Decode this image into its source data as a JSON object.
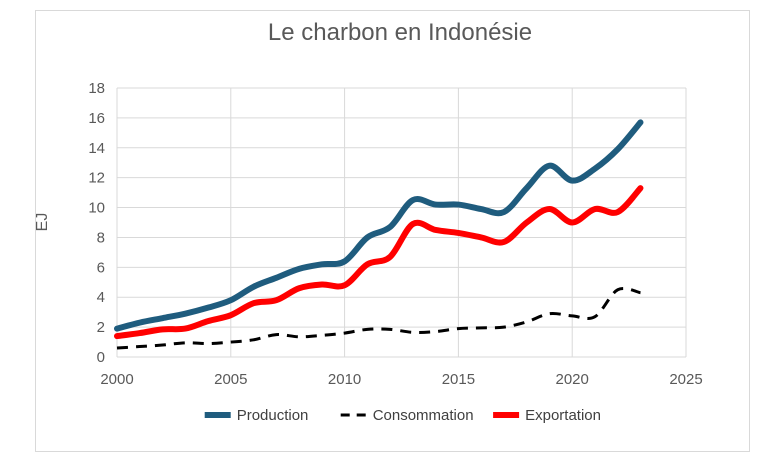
{
  "chart_data": {
    "type": "line",
    "title": "Le charbon en Indonésie",
    "xlabel": "",
    "ylabel": "EJ",
    "xlim": [
      2000,
      2025
    ],
    "ylim": [
      0,
      18
    ],
    "xticks": [
      2000,
      2005,
      2010,
      2015,
      2020,
      2025
    ],
    "yticks": [
      0,
      2,
      4,
      6,
      8,
      10,
      12,
      14,
      16,
      18
    ],
    "grid": true,
    "legend": "bottom",
    "x": [
      2000,
      2001,
      2002,
      2003,
      2004,
      2005,
      2006,
      2007,
      2008,
      2009,
      2010,
      2011,
      2012,
      2013,
      2014,
      2015,
      2016,
      2017,
      2018,
      2019,
      2020,
      2021,
      2022,
      2023
    ],
    "series": [
      {
        "name": "Production",
        "color": "#1f5c7e",
        "dash": "solid",
        "values": [
          1.9,
          2.3,
          2.6,
          2.9,
          3.3,
          3.8,
          4.7,
          5.3,
          5.9,
          6.2,
          6.4,
          8.0,
          8.7,
          10.5,
          10.2,
          10.2,
          9.9,
          9.7,
          11.3,
          12.8,
          11.8,
          12.6,
          13.9,
          15.7
        ]
      },
      {
        "name": "Consommation",
        "color": "#000000",
        "dash": "dashed",
        "values": [
          0.6,
          0.7,
          0.8,
          0.95,
          0.9,
          1.0,
          1.15,
          1.5,
          1.35,
          1.45,
          1.6,
          1.85,
          1.85,
          1.65,
          1.7,
          1.9,
          1.95,
          2.0,
          2.35,
          2.9,
          2.75,
          2.7,
          4.5,
          4.3
        ]
      },
      {
        "name": "Exportation",
        "color": "#ff0000",
        "dash": "solid",
        "values": [
          1.4,
          1.6,
          1.85,
          1.9,
          2.4,
          2.8,
          3.6,
          3.8,
          4.6,
          4.85,
          4.8,
          6.2,
          6.7,
          8.9,
          8.5,
          8.3,
          8.0,
          7.7,
          9.0,
          9.9,
          9.0,
          9.9,
          9.7,
          11.3
        ]
      }
    ]
  }
}
